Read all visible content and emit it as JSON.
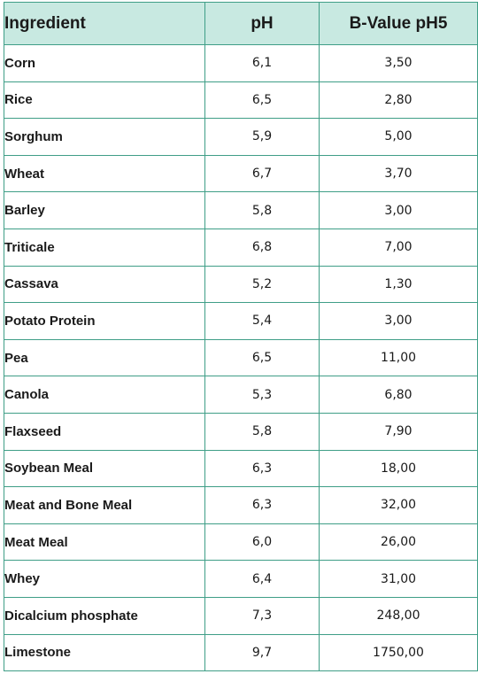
{
  "table": {
    "headers": [
      "Ingredient",
      "pH",
      "B-Value pH5"
    ],
    "rows": [
      [
        "Corn",
        "6,1",
        "3,50"
      ],
      [
        "Rice",
        "6,5",
        "2,80"
      ],
      [
        "Sorghum",
        "5,9",
        "5,00"
      ],
      [
        "Wheat",
        "6,7",
        "3,70"
      ],
      [
        "Barley",
        "5,8",
        "3,00"
      ],
      [
        "Triticale",
        "6,8",
        "7,00"
      ],
      [
        "Cassava",
        "5,2",
        "1,30"
      ],
      [
        "Potato Protein",
        "5,4",
        "3,00"
      ],
      [
        "Pea",
        "6,5",
        "11,00"
      ],
      [
        "Canola",
        "5,3",
        "6,80"
      ],
      [
        "Flaxseed",
        "5,8",
        "7,90"
      ],
      [
        "Soybean Meal",
        "6,3",
        "18,00"
      ],
      [
        "Meat and Bone Meal",
        "6,3",
        "32,00"
      ],
      [
        "Meat Meal",
        "6,0",
        "26,00"
      ],
      [
        "Whey",
        "6,4",
        "31,00"
      ],
      [
        "Dicalcium phosphate",
        "7,3",
        "248,00"
      ],
      [
        "Limestone",
        "9,7",
        "1750,00"
      ]
    ]
  },
  "colors": {
    "header_background": "#c8e9e1",
    "border": "#3f9e87"
  }
}
